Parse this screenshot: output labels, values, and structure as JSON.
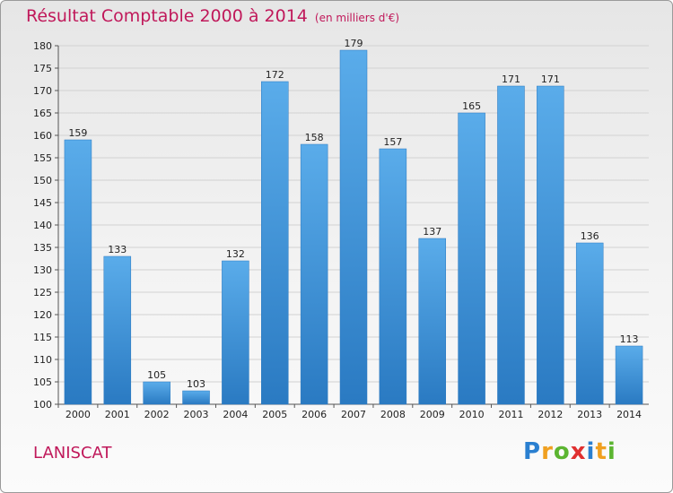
{
  "header": {
    "title": "Résultat Comptable 2000 à 2014",
    "subtitle": "(en milliers d'€)"
  },
  "footer": {
    "place": "LANISCAT",
    "logo_text": "Proxiti"
  },
  "colors": {
    "title": "#c0185a",
    "bar_top": "#5aacea",
    "bar_bottom": "#2a7ac2"
  },
  "chart_data": {
    "type": "bar",
    "title": "Résultat Comptable 2000 à 2014",
    "subtitle": "(en milliers d'€)",
    "xlabel": "",
    "ylabel": "",
    "categories": [
      "2000",
      "2001",
      "2002",
      "2003",
      "2004",
      "2005",
      "2006",
      "2007",
      "2008",
      "2009",
      "2010",
      "2011",
      "2012",
      "2013",
      "2014"
    ],
    "values": [
      159,
      133,
      105,
      103,
      132,
      172,
      158,
      179,
      157,
      137,
      165,
      171,
      171,
      136,
      113
    ],
    "ylim": [
      100,
      180
    ],
    "yticks": [
      100,
      105,
      110,
      115,
      120,
      125,
      130,
      135,
      140,
      145,
      150,
      155,
      160,
      165,
      170,
      175,
      180
    ],
    "grid": true,
    "legend": "none"
  }
}
